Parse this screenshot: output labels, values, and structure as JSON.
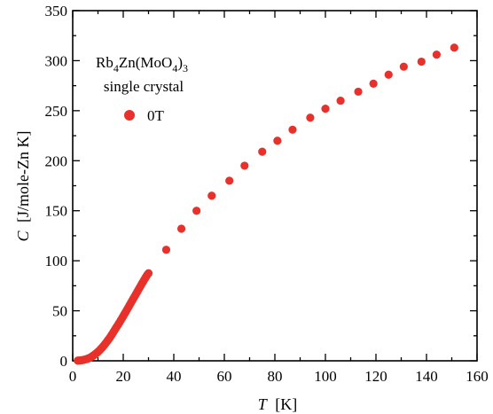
{
  "chart_data": {
    "type": "scatter",
    "title": "",
    "xlabel": {
      "symbol": "T",
      "unit": "[K]"
    },
    "ylabel": {
      "symbol": "C",
      "unit": "[J/mole-Zn K]"
    },
    "xlim": [
      0,
      160
    ],
    "ylim": [
      0,
      350
    ],
    "xticks": [
      "0",
      "20",
      "40",
      "60",
      "80",
      "100",
      "120",
      "140",
      "160"
    ],
    "yticks": [
      "0",
      "50",
      "100",
      "150",
      "200",
      "250",
      "300",
      "350"
    ],
    "grid": false,
    "legend": {
      "placement": "top-left",
      "sample_line1": "Rb4Zn(MoO4)3",
      "sample_line2": "single crystal",
      "entry": "0T"
    },
    "colors": {
      "marker": "#e8312a",
      "axis": "#000000"
    },
    "series": [
      {
        "name": "0T",
        "x": [
          2,
          2.5,
          3,
          3.5,
          4,
          4.5,
          5,
          5.5,
          6,
          6.5,
          7,
          7.5,
          8,
          8.5,
          9,
          9.5,
          10,
          10.5,
          11,
          11.5,
          12,
          12.5,
          13,
          13.5,
          14,
          14.5,
          15,
          15.5,
          16,
          16.5,
          17,
          17.5,
          18,
          18.5,
          19,
          19.5,
          20,
          20.5,
          21,
          21.5,
          22,
          22.5,
          23,
          23.5,
          24,
          24.5,
          25,
          25.5,
          26,
          26.5,
          27,
          27.5,
          28,
          28.5,
          29,
          29.5,
          30,
          37,
          43,
          49,
          55,
          62,
          68,
          75,
          81,
          87,
          94,
          100,
          106,
          113,
          119,
          125,
          131,
          138,
          144,
          151
        ],
        "y": [
          0.2,
          0.3,
          0.4,
          0.6,
          0.8,
          1.1,
          1.4,
          1.8,
          2.2,
          2.8,
          3.4,
          4.1,
          5.0,
          5.9,
          6.9,
          7.9,
          9.0,
          10.2,
          11.5,
          12.8,
          14.3,
          15.8,
          17.4,
          19.0,
          20.8,
          22.5,
          24.4,
          26.3,
          28.3,
          30.3,
          32.3,
          34.3,
          36.3,
          38.3,
          40.4,
          42.5,
          44.6,
          46.8,
          49.0,
          51.2,
          53.4,
          55.6,
          57.8,
          60.0,
          62.2,
          64.4,
          66.6,
          68.8,
          71.0,
          73.2,
          75.4,
          77.6,
          79.7,
          81.8,
          83.9,
          85.9,
          87.5,
          111,
          132,
          150,
          165,
          180,
          195,
          209,
          220,
          231,
          243,
          252,
          260,
          269,
          277,
          286,
          294,
          299,
          306,
          313
        ]
      }
    ]
  }
}
